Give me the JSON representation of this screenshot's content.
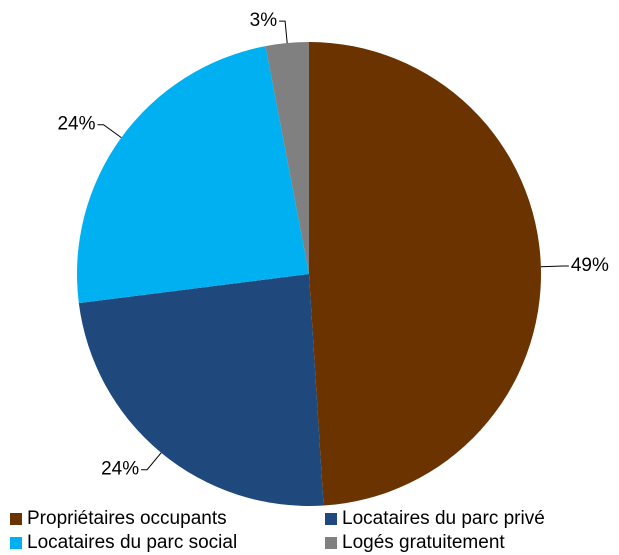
{
  "chart_data": {
    "type": "pie",
    "categories": [
      "Propriétaires occupants",
      "Locataires du parc privé",
      "Locataires du parc social",
      "Logés gratuitement"
    ],
    "values": [
      49,
      24,
      24,
      3
    ],
    "value_labels": [
      "49%",
      "24%",
      "24%",
      "3%"
    ],
    "colors": [
      "#6b3300",
      "#1f497d",
      "#00b0f0",
      "#808080"
    ],
    "legend": "bottom"
  }
}
